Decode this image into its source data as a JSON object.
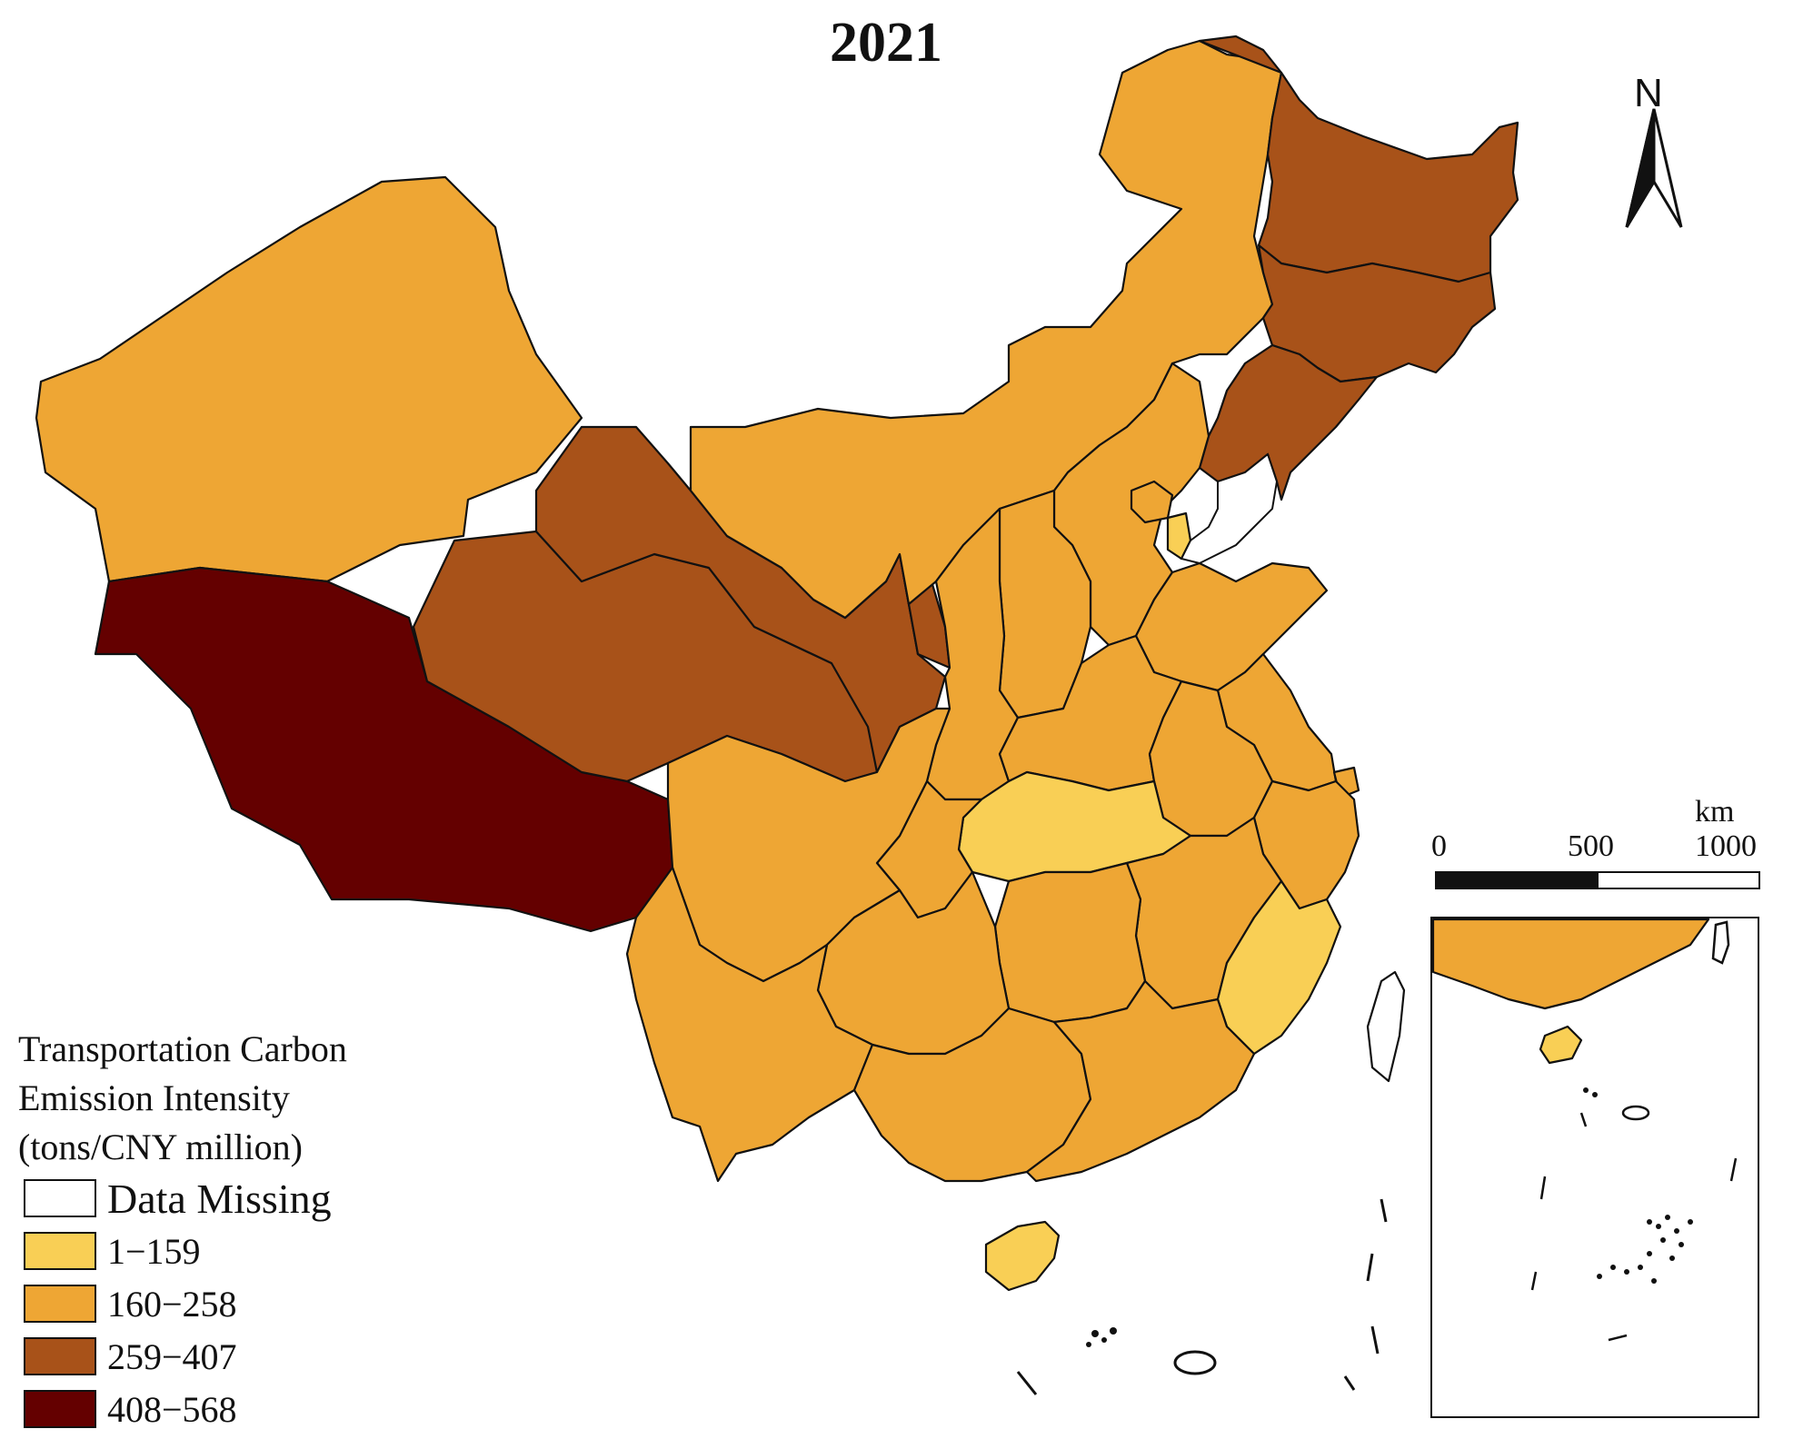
{
  "title": "2021",
  "north_arrow": {
    "label": "N"
  },
  "legend": {
    "title": "Transportation Carbon\n Emission Intensity\n(tons/CNY million)",
    "items": [
      {
        "label": "Data Missing",
        "color": "#ffffff"
      },
      {
        "label": "1−159",
        "color": "#f9cf55"
      },
      {
        "label": "160−258",
        "color": "#eea634"
      },
      {
        "label": "259−407",
        "color": "#a85219"
      },
      {
        "label": "408−568",
        "color": "#640000"
      }
    ]
  },
  "scale_bar": {
    "unit": "km",
    "ticks": [
      "0",
      "500",
      "1000"
    ]
  },
  "map": {
    "region": "China (provinces)",
    "inset": "South China Sea islands"
  }
}
